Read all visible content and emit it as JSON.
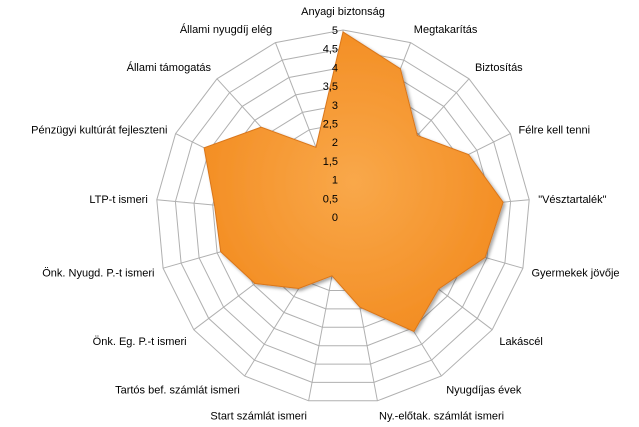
{
  "chart_data": {
    "type": "radar",
    "categories": [
      "Anyagi biztonság",
      "Megtakarítás",
      "Biztosítás",
      "Félre kell tenni",
      "\"Vésztartalék\"",
      "Gyermekek jövője",
      "Lakáscél",
      "Nyugdíjas évek",
      "Ny.-előtak. számlát  ismeri",
      "Start számlát  ismeri",
      "Tartós bef. számlát  ismeri",
      "Önk. Eg. P.-t ismeri",
      "Önk. Nyugd.  P.-t ismeri",
      "LTP-t ismeri",
      "Pénzügyi kultúrát fejleszteni",
      "Állami támogatás",
      "Állami nyugdíj elég"
    ],
    "series": [
      {
        "values": [
          4.95,
          4.25,
          2.95,
          3.75,
          4.3,
          3.95,
          3.2,
          3.6,
          2.45,
          1.6,
          2.25,
          2.95,
          3.4,
          3.45,
          4.15,
          3.25,
          2.0
        ]
      }
    ],
    "ticks": [
      "0",
      "0,5",
      "1",
      "1,5",
      "2",
      "2,5",
      "3",
      "3,5",
      "4",
      "4,5",
      "5"
    ],
    "rmax": 5,
    "grid": true,
    "legend": "none",
    "fill_color": "#f28a1e",
    "fill_highlight": "#f9a84a",
    "grid_color": "#b0b0b0"
  }
}
